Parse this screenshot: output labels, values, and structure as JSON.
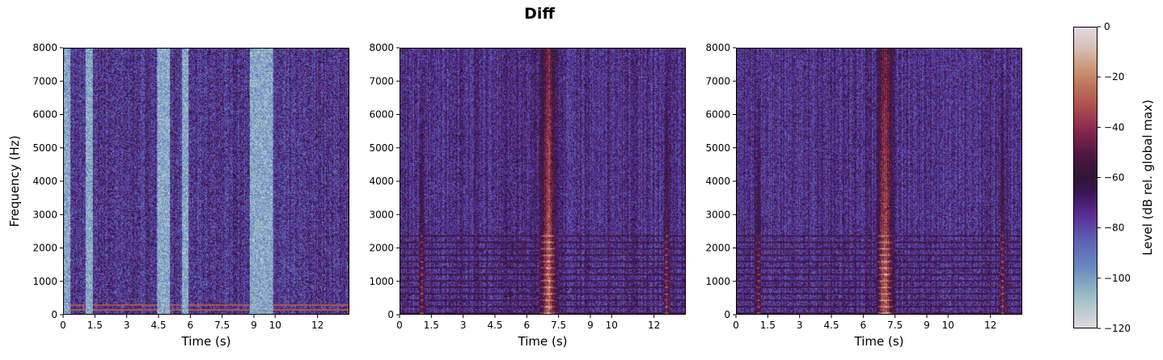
{
  "title": "Diff",
  "chart_data": [
    {
      "type": "heatmap",
      "xlabel": "Time (s)",
      "ylabel": "Frequency (Hz)",
      "xlim": [
        0,
        13.5
      ],
      "ylim": [
        0,
        8000
      ],
      "xticks": [
        "0",
        "1.5",
        "3",
        "4.5",
        "6",
        "7.5",
        "9",
        "10",
        "12"
      ],
      "xtick_values": [
        0,
        1.5,
        3,
        4.5,
        6,
        7.5,
        9,
        10,
        12
      ],
      "yticks": [
        "0",
        "1000",
        "2000",
        "3000",
        "4000",
        "5000",
        "6000",
        "7000",
        "8000"
      ]
    },
    {
      "type": "heatmap",
      "xlabel": "Time (s)",
      "ylabel": "",
      "xlim": [
        0,
        13.5
      ],
      "ylim": [
        0,
        8000
      ],
      "xticks": [
        "0",
        "1.5",
        "3",
        "4.5",
        "6",
        "7.5",
        "9",
        "10",
        "12"
      ],
      "xtick_values": [
        0,
        1.5,
        3,
        4.5,
        6,
        7.5,
        9,
        10,
        12
      ],
      "yticks": [
        "0",
        "1000",
        "2000",
        "3000",
        "4000",
        "5000",
        "6000",
        "7000",
        "8000"
      ]
    },
    {
      "type": "heatmap",
      "xlabel": "Time (s)",
      "ylabel": "",
      "xlim": [
        0,
        13.5
      ],
      "ylim": [
        0,
        8000
      ],
      "xticks": [
        "0",
        "1.5",
        "3",
        "4.5",
        "6",
        "7.5",
        "9",
        "10",
        "12"
      ],
      "xtick_values": [
        0,
        1.5,
        3,
        4.5,
        6,
        7.5,
        9,
        10,
        12
      ],
      "yticks": [
        "0",
        "1000",
        "2000",
        "3000",
        "4000",
        "5000",
        "6000",
        "7000",
        "8000"
      ]
    }
  ],
  "colorbar": {
    "label": "Level (dB rel. global max)",
    "range": [
      -120,
      0
    ],
    "colormap": "twilight",
    "ticks": [
      "0",
      "−20",
      "−40",
      "−60",
      "−80",
      "−100",
      "−120"
    ],
    "tick_values": [
      0,
      -20,
      -40,
      -60,
      -80,
      -100,
      -120
    ]
  }
}
